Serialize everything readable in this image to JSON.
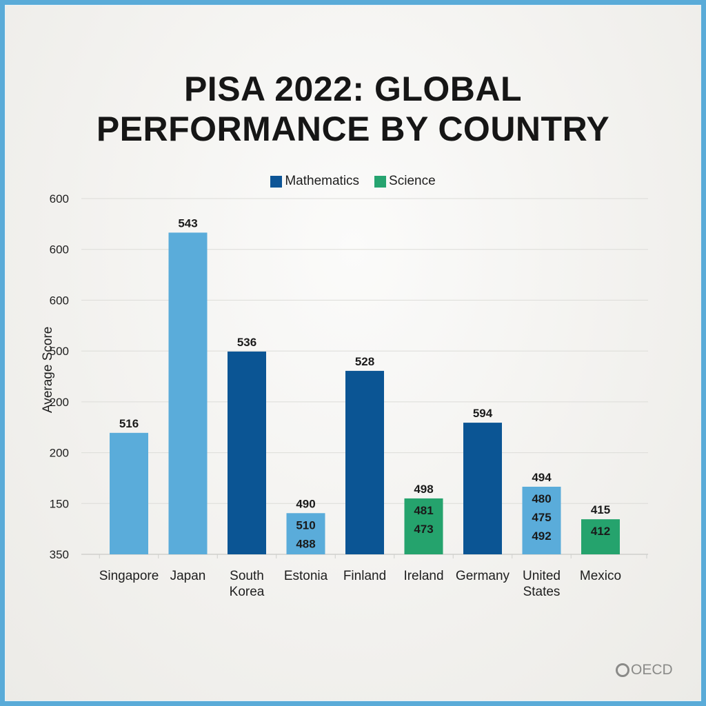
{
  "chart_data": {
    "type": "bar",
    "title": "PISA 2022: GLOBAL PERFORMANCE BY COUNTRY",
    "title_lines": [
      "PISA 2022: GLOBAL",
      "PERFORMANCE BY COUNTRY"
    ],
    "xlabel": "",
    "ylabel": "Average Score",
    "y_tick_labels": [
      "350",
      "150",
      "200",
      "200",
      "500",
      "600",
      "600",
      "600"
    ],
    "y_tick_note": "Tick labels as printed, bottom to top; gridlines are evenly spaced (7 steps above baseline).",
    "y_grid_steps": 7,
    "grid": true,
    "legend": {
      "placement": "top-center",
      "entries": [
        {
          "name": "Mathematics",
          "color": "#0d5596"
        },
        {
          "name": "Science",
          "color": "#26a470"
        }
      ]
    },
    "colors": {
      "light_blue": "#5aacda",
      "dark_blue": "#0b5594",
      "green": "#25a36d"
    },
    "categories": [
      {
        "label_lines": [
          "Singapore"
        ],
        "value_label": "516",
        "inner_labels": [],
        "color": "light_blue",
        "level_steps": 2.39
      },
      {
        "label_lines": [
          "Japan"
        ],
        "value_label": "543",
        "inner_labels": [],
        "color": "light_blue",
        "level_steps": 6.33
      },
      {
        "label_lines": [
          "South",
          "Korea"
        ],
        "value_label": "536",
        "inner_labels": [],
        "color": "dark_blue",
        "level_steps": 3.99
      },
      {
        "label_lines": [
          "Estonia"
        ],
        "value_label": "490",
        "inner_labels": [
          "510",
          "488"
        ],
        "color": "light_blue",
        "level_steps": 0.81
      },
      {
        "label_lines": [
          "Finland"
        ],
        "value_label": "528",
        "inner_labels": [],
        "color": "dark_blue",
        "level_steps": 3.61
      },
      {
        "label_lines": [
          "Ireland"
        ],
        "value_label": "498",
        "inner_labels": [
          "481",
          "473"
        ],
        "color": "green",
        "level_steps": 1.1
      },
      {
        "label_lines": [
          "Germany"
        ],
        "value_label": "594",
        "inner_labels": [],
        "color": "dark_blue",
        "level_steps": 2.59
      },
      {
        "label_lines": [
          "United",
          "States"
        ],
        "value_label": "494",
        "inner_labels": [
          "480",
          "475",
          "492"
        ],
        "color": "light_blue",
        "level_steps": 1.33
      },
      {
        "label_lines": [
          "Mexico"
        ],
        "value_label": "415",
        "inner_labels": [
          "412"
        ],
        "color": "green",
        "level_steps": 0.69
      }
    ]
  },
  "branding": {
    "logo_text": "OECD"
  }
}
